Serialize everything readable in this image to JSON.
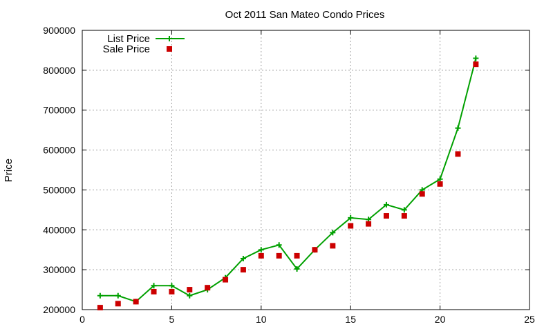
{
  "chart_data": {
    "type": "line",
    "title": "Oct 2011 San Mateo Condo Prices",
    "xlabel": "",
    "ylabel": "Price",
    "xlim": [
      0,
      25
    ],
    "ylim": [
      200000,
      900000
    ],
    "x_ticks": [
      0,
      5,
      10,
      15,
      20,
      25
    ],
    "y_ticks": [
      200000,
      300000,
      400000,
      500000,
      600000,
      700000,
      800000,
      900000
    ],
    "x_tick_labels": [
      "0",
      "5",
      "10",
      "15",
      "20",
      "25"
    ],
    "y_tick_labels": [
      "200000",
      "300000",
      "400000",
      "500000",
      "600000",
      "700000",
      "800000",
      "900000"
    ],
    "grid": true,
    "legend_position": "top-left",
    "series": [
      {
        "name": "List Price",
        "style": "line-with-plus-markers",
        "color": "#00a000",
        "x": [
          1,
          2,
          3,
          4,
          5,
          6,
          7,
          8,
          9,
          10,
          11,
          12,
          13,
          14,
          15,
          16,
          17,
          18,
          19,
          20,
          21,
          22
        ],
        "values": [
          235000,
          235000,
          220000,
          260000,
          260000,
          235000,
          250000,
          280000,
          328000,
          350000,
          362000,
          302000,
          350000,
          393000,
          430000,
          426000,
          463000,
          450000,
          500000,
          527000,
          655000,
          830000
        ]
      },
      {
        "name": "Sale Price",
        "style": "square-markers",
        "color": "#cc0000",
        "x": [
          1,
          2,
          3,
          4,
          5,
          6,
          7,
          8,
          9,
          10,
          11,
          12,
          13,
          14,
          15,
          16,
          17,
          18,
          19,
          20,
          21,
          22
        ],
        "values": [
          205000,
          215000,
          220000,
          245000,
          245000,
          250000,
          255000,
          275000,
          300000,
          335000,
          335000,
          335000,
          350000,
          360000,
          410000,
          415000,
          435000,
          435000,
          490000,
          515000,
          590000,
          815000
        ]
      }
    ]
  }
}
